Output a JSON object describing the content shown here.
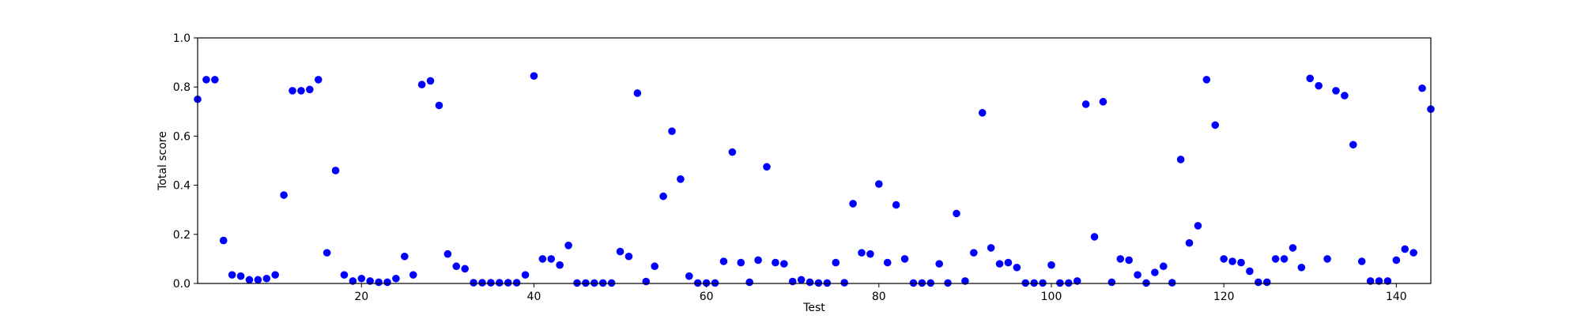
{
  "chart_data": {
    "type": "scatter",
    "title": "",
    "xlabel": "Test",
    "ylabel": "Total score",
    "xlim": [
      1,
      144
    ],
    "ylim": [
      0,
      1.0
    ],
    "x_ticks": [
      20,
      40,
      60,
      80,
      100,
      120,
      140
    ],
    "x_tick_labels": [
      "20",
      "40",
      "60",
      "80",
      "100",
      "120",
      "140"
    ],
    "y_ticks": [
      0,
      0.2,
      0.4,
      0.6,
      0.8,
      1.0
    ],
    "y_tick_labels": [
      "0.0",
      "0.2",
      "0.4",
      "0.6",
      "0.8",
      "1.0"
    ],
    "grid": false,
    "series": [
      {
        "color": "#0000ff",
        "x": [
          1,
          2,
          3,
          4,
          5,
          6,
          7,
          8,
          9,
          10,
          11,
          12,
          13,
          14,
          15,
          16,
          17,
          18,
          19,
          20,
          21,
          22,
          23,
          24,
          25,
          26,
          27,
          28,
          29,
          30,
          31,
          32,
          33,
          34,
          35,
          36,
          37,
          38,
          39,
          40,
          41,
          42,
          43,
          44,
          45,
          46,
          47,
          48,
          49,
          50,
          51,
          52,
          53,
          54,
          55,
          56,
          57,
          58,
          59,
          60,
          61,
          62,
          63,
          64,
          65,
          66,
          67,
          68,
          69,
          70,
          71,
          72,
          73,
          74,
          75,
          76,
          77,
          78,
          79,
          80,
          81,
          82,
          83,
          84,
          85,
          86,
          87,
          88,
          89,
          90,
          91,
          92,
          93,
          94,
          95,
          96,
          97,
          98,
          99,
          100,
          101,
          102,
          103,
          104,
          105,
          106,
          107,
          108,
          109,
          110,
          111,
          112,
          113,
          114,
          115,
          116,
          117,
          118,
          119,
          120,
          121,
          122,
          123,
          124,
          125,
          126,
          127,
          128,
          129,
          130,
          131,
          132,
          133,
          134,
          135,
          136,
          137,
          138,
          139,
          140,
          141,
          142,
          143,
          144
        ],
        "y": [
          0.75,
          0.83,
          0.83,
          0.175,
          0.035,
          0.03,
          0.015,
          0.015,
          0.02,
          0.035,
          0.36,
          0.785,
          0.785,
          0.79,
          0.83,
          0.125,
          0.46,
          0.035,
          0.01,
          0.02,
          0.01,
          0.005,
          0.005,
          0.02,
          0.11,
          0.035,
          0.81,
          0.825,
          0.725,
          0.12,
          0.07,
          0.06,
          0.003,
          0.003,
          0.003,
          0.003,
          0.003,
          0.003,
          0.035,
          0.845,
          0.1,
          0.1,
          0.075,
          0.155,
          0.002,
          0.002,
          0.002,
          0.002,
          0.002,
          0.13,
          0.11,
          0.775,
          0.008,
          0.07,
          0.355,
          0.62,
          0.425,
          0.03,
          0.002,
          0.002,
          0.002,
          0.09,
          0.535,
          0.085,
          0.005,
          0.095,
          0.475,
          0.085,
          0.08,
          0.008,
          0.015,
          0.005,
          0.002,
          0.002,
          0.085,
          0.003,
          0.325,
          0.125,
          0.12,
          0.405,
          0.085,
          0.32,
          0.1,
          0.002,
          0.002,
          0.002,
          0.08,
          0.002,
          0.285,
          0.01,
          0.125,
          0.695,
          0.145,
          0.08,
          0.085,
          0.065,
          0.002,
          0.002,
          0.002,
          0.075,
          0.002,
          0.002,
          0.01,
          0.73,
          0.19,
          0.74,
          0.005,
          0.1,
          0.095,
          0.035,
          0.002,
          0.045,
          0.07,
          0.003,
          0.505,
          0.165,
          0.235,
          0.83,
          0.645,
          0.1,
          0.09,
          0.085,
          0.05,
          0.005,
          0.005,
          0.1,
          0.1,
          0.145,
          0.065,
          0.835,
          0.805,
          0.1,
          0.785,
          0.765,
          0.565,
          0.09,
          0.01,
          0.01,
          0.01,
          0.095,
          0.14,
          0.125,
          0.795,
          0.71
        ]
      }
    ]
  }
}
